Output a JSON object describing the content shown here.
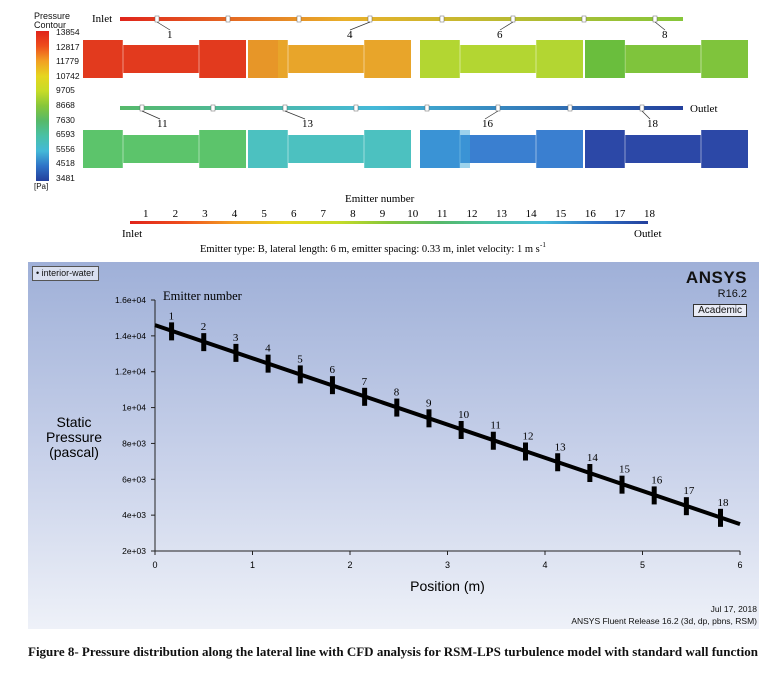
{
  "legend": {
    "title": "Pressure Contour",
    "unit": "[Pa]",
    "values": [
      "13854",
      "12817",
      "11779",
      "10742",
      "9705",
      "8668",
      "7630",
      "6593",
      "5556",
      "4518",
      "3481"
    ],
    "colors": [
      "#e0241b",
      "#ee4d1c",
      "#f2a023",
      "#e6d51f",
      "#c7dc27",
      "#86c63a",
      "#56b96a",
      "#49c1a6",
      "#44b9d8",
      "#2f73c7",
      "#233f9c"
    ]
  },
  "contour": {
    "inlet_label": "Inlet",
    "outlet_label": "Outlet",
    "emitter_callouts": [
      "1",
      "4",
      "6",
      "8",
      "11",
      "13",
      "16",
      "18"
    ],
    "segment_colors_top": [
      "#e23a1e",
      "#e8a52a",
      "#b3d632",
      "#7fc43c"
    ],
    "segment_colors_bottom": [
      "#5cc46b",
      "#4cc1c0",
      "#3a7fd0",
      "#2c48a7"
    ]
  },
  "emitter_strip": {
    "title": "Emitter number",
    "numbers": [
      "1",
      "2",
      "3",
      "4",
      "5",
      "6",
      "7",
      "8",
      "9",
      "10",
      "11",
      "12",
      "13",
      "14",
      "15",
      "16",
      "17",
      "18"
    ],
    "inlet_label": "Inlet",
    "outlet_label": "Outlet",
    "caption": "Emitter type: B, lateral length: 6 m, emitter spacing: 0.33 m, inlet velocity: 1 m s",
    "caption_sup": "-1"
  },
  "plot": {
    "zone_tag": "interior-water",
    "ansys_name": "ANSYS",
    "ansys_version": "R16.2",
    "ansys_edition": "Academic",
    "emitter_label": "Emitter number",
    "date": "Jul 17, 2018",
    "release": "ANSYS Fluent Release 16.2 (3d, dp, pbns, RSM)"
  },
  "chart_data": {
    "type": "line",
    "title": "",
    "xlabel": "Position (m)",
    "ylabel": "Static Pressure (pascal)",
    "xlim": [
      0,
      6
    ],
    "ylim": [
      2000,
      16000
    ],
    "xticks": [
      "0",
      "1",
      "2",
      "3",
      "4",
      "5",
      "6"
    ],
    "yticks": [
      "2e+03",
      "4e+03",
      "6e+03",
      "8e+03",
      "1e+04",
      "1.2e+04",
      "1.4e+04",
      "1.6e+04"
    ],
    "series": [
      {
        "x": [
          0,
          6
        ],
        "y": [
          14600,
          3500
        ]
      }
    ],
    "emitters": {
      "labels": [
        "1",
        "2",
        "3",
        "4",
        "5",
        "6",
        "7",
        "8",
        "9",
        "10",
        "11",
        "12",
        "13",
        "14",
        "15",
        "16",
        "17",
        "18"
      ],
      "x": [
        0.17,
        0.5,
        0.83,
        1.16,
        1.49,
        1.82,
        2.15,
        2.48,
        2.81,
        3.14,
        3.47,
        3.8,
        4.13,
        4.46,
        4.79,
        5.12,
        5.45,
        5.8
      ],
      "y": [
        14250,
        13650,
        13050,
        12450,
        11850,
        11250,
        10600,
        10000,
        9400,
        8750,
        8150,
        7550,
        6950,
        6350,
        5700,
        5100,
        4500,
        3850
      ]
    }
  },
  "figure_caption": "Figure 8- Pressure distribution along the lateral line with CFD analysis for RSM-LPS turbulence model with standard wall function"
}
